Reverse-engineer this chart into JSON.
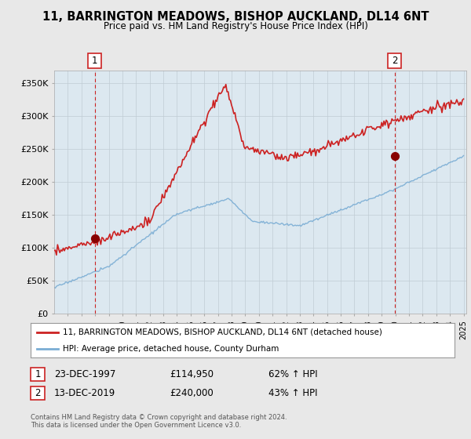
{
  "title": "11, BARRINGTON MEADOWS, BISHOP AUCKLAND, DL14 6NT",
  "subtitle": "Price paid vs. HM Land Registry's House Price Index (HPI)",
  "legend_line1": "11, BARRINGTON MEADOWS, BISHOP AUCKLAND, DL14 6NT (detached house)",
  "legend_line2": "HPI: Average price, detached house, County Durham",
  "annotation1_label": "1",
  "annotation1_date": "23-DEC-1997",
  "annotation1_price": "£114,950",
  "annotation1_hpi": "62% ↑ HPI",
  "annotation2_label": "2",
  "annotation2_date": "13-DEC-2019",
  "annotation2_price": "£240,000",
  "annotation2_hpi": "43% ↑ HPI",
  "footer": "Contains HM Land Registry data © Crown copyright and database right 2024.\nThis data is licensed under the Open Government Licence v3.0.",
  "hpi_color": "#7aadd4",
  "price_color": "#cc2222",
  "dot_color": "#880000",
  "dashed_color": "#cc2222",
  "ylim": [
    0,
    370000
  ],
  "yticks": [
    0,
    50000,
    100000,
    150000,
    200000,
    250000,
    300000,
    350000
  ],
  "ytick_labels": [
    "£0",
    "£50K",
    "£100K",
    "£150K",
    "£200K",
    "£250K",
    "£300K",
    "£350K"
  ],
  "background_color": "#e8e8e8",
  "plot_bg_color": "#dce8f0",
  "grid_color": "#c0ccd4"
}
